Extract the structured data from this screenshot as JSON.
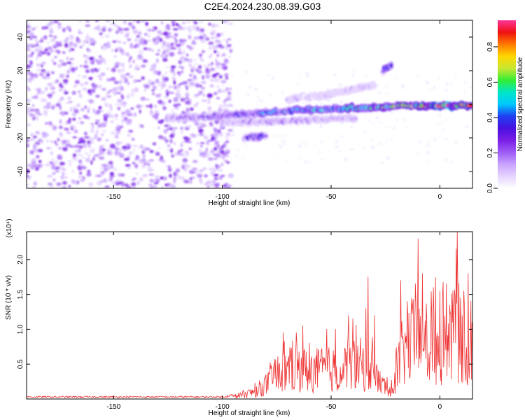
{
  "title": "C2E4.2024.230.08.39.G03",
  "colors": {
    "snr_line": "#ee3333",
    "colormap": [
      "#ffffff",
      "#e6d5ff",
      "#c9a3ff",
      "#9f5cf5",
      "#7a1fe6",
      "#4a10e0",
      "#1f3ff0",
      "#00c8ff",
      "#00e6c8",
      "#33ee33",
      "#c8e632",
      "#ffd700",
      "#ff7a00",
      "#ee1111",
      "#ff3399"
    ]
  },
  "chart_data": [
    {
      "type": "heatmap",
      "xlabel": "Height of straight line (km)",
      "ylabel": "Frequency (Hz)",
      "xlim": [
        -190,
        15
      ],
      "ylim": [
        -50,
        50
      ],
      "x_ticks": [
        "-150",
        "-100",
        "-50",
        "0"
      ],
      "x_tick_values": [
        -150,
        -100,
        -50,
        0
      ],
      "y_ticks": [
        "-40",
        "-20",
        "0",
        "20",
        "40"
      ],
      "y_tick_values": [
        -40,
        -20,
        0,
        20,
        40
      ],
      "colorbar": {
        "label": "Normalized spectral amplitude",
        "range": [
          0,
          0.95
        ],
        "ticks": [
          "0.0",
          "0.2",
          "0.4",
          "0.6",
          "0.8"
        ],
        "tick_values": [
          0.0,
          0.2,
          0.4,
          0.6,
          0.8
        ]
      },
      "noise_region_x": [
        -190,
        -100
      ],
      "tracks": [
        {
          "x": [
            -125,
            -100,
            -80,
            -60,
            -40,
            -20,
            0,
            15
          ],
          "y": [
            -8,
            -7,
            -5,
            -3,
            -2,
            -1,
            -1,
            -1
          ],
          "amplitude": [
            0.2,
            0.3,
            0.45,
            0.45,
            0.5,
            0.6,
            0.85,
            0.8
          ]
        },
        {
          "x": [
            -100,
            -75,
            -55,
            -38
          ],
          "y": [
            -11,
            -10,
            -9,
            -8
          ],
          "amplitude": [
            0.15,
            0.2,
            0.2,
            0.15
          ]
        },
        {
          "x": [
            -90,
            -85,
            -80
          ],
          "y": [
            -20,
            -19.5,
            -19
          ],
          "amplitude": [
            0.25,
            0.4,
            0.3
          ]
        },
        {
          "x": [
            -26,
            -24,
            -22
          ],
          "y": [
            20,
            22,
            24
          ],
          "amplitude": [
            0.3,
            0.45,
            0.3
          ]
        },
        {
          "x": [
            -70,
            -50,
            -30
          ],
          "y": [
            3,
            6,
            12
          ],
          "amplitude": [
            0.1,
            0.1,
            0.12
          ]
        }
      ]
    },
    {
      "type": "line",
      "xlabel": "Height of straight line (km)",
      "ylabel": "SNR (10 * v/v)",
      "y_scale_label": "(x10⁴)",
      "xlim": [
        -190,
        15
      ],
      "ylim": [
        0,
        2.4
      ],
      "x_ticks": [
        "-150",
        "-100",
        "-50",
        "0"
      ],
      "x_tick_values": [
        -150,
        -100,
        -50,
        0
      ],
      "y_ticks": [
        "0.5",
        "1.0",
        "1.5",
        "2.0"
      ],
      "y_tick_values": [
        0.5,
        1.0,
        1.5,
        2.0
      ],
      "series": [
        {
          "name": "",
          "envelope_x": [
            -190,
            -100,
            -92,
            -85,
            -78,
            -72,
            -65,
            -60,
            -55,
            -50,
            -45,
            -40,
            -36,
            -34,
            -32,
            -30,
            -28,
            -25,
            -22,
            -20,
            -18,
            -15,
            -12,
            -10,
            -8,
            -5,
            -2,
            0,
            3,
            5,
            8,
            10,
            12,
            14,
            15
          ],
          "envelope_y": [
            0.03,
            0.03,
            0.07,
            0.15,
            0.35,
            0.55,
            0.65,
            0.55,
            0.6,
            0.6,
            0.55,
            0.75,
            0.7,
            0.6,
            0.6,
            0.55,
            0.35,
            0.25,
            0.2,
            0.5,
            0.85,
            1.1,
            1.2,
            1.1,
            0.95,
            1.05,
            1.15,
            1.2,
            1.25,
            1.2,
            1.3,
            1.4,
            1.1,
            0.9,
            1.0
          ],
          "peaks_x": [
            -72,
            -63,
            -52,
            -48,
            -42,
            -34,
            -33,
            -30,
            -18,
            -15,
            -10,
            -8,
            -3,
            0,
            3,
            6,
            7.5,
            8,
            11,
            13
          ],
          "peaks_y": [
            0.95,
            1.05,
            1.0,
            1.0,
            1.2,
            1.3,
            1.75,
            1.2,
            1.7,
            1.4,
            2.3,
            1.8,
            1.6,
            1.55,
            1.65,
            1.55,
            2.15,
            2.4,
            1.55,
            1.8
          ]
        }
      ]
    }
  ]
}
